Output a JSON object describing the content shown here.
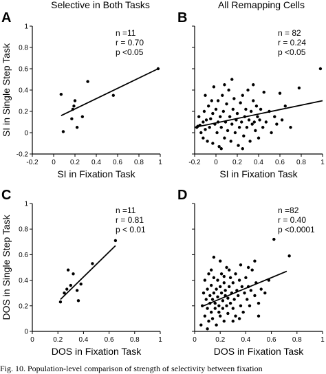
{
  "column_titles": [
    "Selective in Both Tasks",
    "All Remapping Cells"
  ],
  "caption": "Fig. 10. Population-level comparison of strength of selectivity between fixation",
  "colors": {
    "ink": "#000000",
    "background": "#ffffff"
  },
  "chart_data": [
    {
      "panel": "A",
      "type": "scatter",
      "xlabel": "SI in Fixation Task",
      "ylabel": "SI in Single Step Task",
      "xlim": [
        -0.2,
        1
      ],
      "ylim": [
        -0.2,
        1
      ],
      "xticks": [
        "-0.2",
        "0",
        "0.2",
        "0.4",
        "0.6",
        "0.8",
        "1"
      ],
      "yticks": [
        "-0.2",
        "0",
        "0.2",
        "0.4",
        "0.6",
        "0.8",
        "1"
      ],
      "stats": [
        "n =11",
        "r = 0.70",
        "p <0.05"
      ],
      "points": [
        [
          0.07,
          0.36
        ],
        [
          0.09,
          0.01
        ],
        [
          0.17,
          0.13
        ],
        [
          0.18,
          0.22
        ],
        [
          0.19,
          0.25
        ],
        [
          0.2,
          0.3
        ],
        [
          0.22,
          0.05
        ],
        [
          0.27,
          0.15
        ],
        [
          0.32,
          0.48
        ],
        [
          0.56,
          0.35
        ],
        [
          0.98,
          0.6
        ]
      ],
      "fit": [
        [
          0.07,
          0.16
        ],
        [
          0.98,
          0.6
        ]
      ]
    },
    {
      "panel": "B",
      "type": "scatter",
      "xlabel": "SI in Fixation Task",
      "ylabel": "",
      "xlim": [
        -0.2,
        1
      ],
      "ylim": [
        -0.2,
        1
      ],
      "xticks": [
        "-0.2",
        "0",
        "0.2",
        "0.4",
        "0.6",
        "0.8",
        "1"
      ],
      "yticks": [],
      "stats": [
        "n = 82",
        "r = 0.24",
        "p <0.05"
      ],
      "points": [
        [
          -0.18,
          0.05
        ],
        [
          -0.17,
          0.06
        ],
        [
          -0.16,
          0.15
        ],
        [
          -0.15,
          0.07
        ],
        [
          -0.14,
          0.0
        ],
        [
          -0.12,
          0.1
        ],
        [
          -0.12,
          -0.05
        ],
        [
          -0.11,
          0.2
        ],
        [
          -0.1,
          0.03
        ],
        [
          -0.09,
          0.12
        ],
        [
          -0.08,
          -0.08
        ],
        [
          -0.07,
          0.25
        ],
        [
          -0.06,
          0.05
        ],
        [
          -0.05,
          0.13
        ],
        [
          -0.04,
          0.3
        ],
        [
          -0.03,
          -0.1
        ],
        [
          -0.03,
          0.18
        ],
        [
          -0.02,
          0.43
        ],
        [
          -0.01,
          0.08
        ],
        [
          0.0,
          0.22
        ],
        [
          0.01,
          0.0
        ],
        [
          0.02,
          0.1
        ],
        [
          0.02,
          0.3
        ],
        [
          0.03,
          -0.13
        ],
        [
          0.04,
          0.15
        ],
        [
          0.05,
          0.05
        ],
        [
          0.06,
          0.35
        ],
        [
          0.07,
          0.2
        ],
        [
          0.08,
          -0.05
        ],
        [
          0.09,
          0.1
        ],
        [
          0.1,
          0.27
        ],
        [
          0.11,
          0.02
        ],
        [
          0.12,
          0.4
        ],
        [
          0.13,
          0.15
        ],
        [
          0.14,
          -0.08
        ],
        [
          0.15,
          0.08
        ],
        [
          0.16,
          0.22
        ],
        [
          0.17,
          0.32
        ],
        [
          0.18,
          0.0
        ],
        [
          0.19,
          0.12
        ],
        [
          0.2,
          0.18
        ],
        [
          0.21,
          -0.12
        ],
        [
          0.22,
          0.05
        ],
        [
          0.23,
          0.28
        ],
        [
          0.24,
          0.1
        ],
        [
          0.25,
          0.35
        ],
        [
          0.26,
          -0.03
        ],
        [
          0.27,
          0.15
        ],
        [
          0.28,
          0.22
        ],
        [
          0.29,
          0.05
        ],
        [
          0.3,
          0.4
        ],
        [
          0.31,
          0.12
        ],
        [
          0.32,
          -0.08
        ],
        [
          0.33,
          0.2
        ],
        [
          0.34,
          0.08
        ],
        [
          0.35,
          0.3
        ],
        [
          0.36,
          0.1
        ],
        [
          0.37,
          0.02
        ],
        [
          0.38,
          0.25
        ],
        [
          0.39,
          0.15
        ],
        [
          0.4,
          -0.05
        ],
        [
          0.41,
          0.12
        ],
        [
          0.42,
          0.22
        ],
        [
          0.44,
          0.05
        ],
        [
          0.45,
          0.38
        ],
        [
          0.47,
          0.1
        ],
        [
          0.5,
          0.2
        ],
        [
          0.52,
          0.0
        ],
        [
          0.55,
          0.15
        ],
        [
          0.57,
          0.08
        ],
        [
          0.6,
          0.37
        ],
        [
          0.62,
          0.12
        ],
        [
          0.65,
          0.25
        ],
        [
          0.7,
          0.05
        ],
        [
          0.78,
          0.42
        ],
        [
          0.98,
          0.6
        ],
        [
          0.08,
          0.45
        ],
        [
          0.15,
          0.5
        ],
        [
          -0.1,
          0.35
        ],
        [
          0.05,
          -0.15
        ],
        [
          0.25,
          -0.15
        ],
        [
          0.35,
          0.45
        ]
      ],
      "fit": [
        [
          -0.2,
          0.05
        ],
        [
          1.0,
          0.3
        ]
      ]
    },
    {
      "panel": "C",
      "type": "scatter",
      "xlabel": "DOS in Fixation Task",
      "ylabel": "DOS in Single Step Task",
      "xlim": [
        0,
        1
      ],
      "ylim": [
        0,
        1
      ],
      "xticks": [
        "0",
        "0.2",
        "0.4",
        "0.6",
        "0.8",
        "1"
      ],
      "yticks": [
        "0",
        "0.2",
        "0.4",
        "0.6",
        "0.8",
        "1"
      ],
      "stats": [
        "n =11",
        "r = 0.81",
        "p < 0.01"
      ],
      "points": [
        [
          0.22,
          0.23
        ],
        [
          0.25,
          0.3
        ],
        [
          0.27,
          0.33
        ],
        [
          0.28,
          0.48
        ],
        [
          0.3,
          0.36
        ],
        [
          0.32,
          0.45
        ],
        [
          0.35,
          0.32
        ],
        [
          0.36,
          0.24
        ],
        [
          0.38,
          0.37
        ],
        [
          0.47,
          0.53
        ],
        [
          0.65,
          0.71
        ]
      ],
      "fit": [
        [
          0.22,
          0.25
        ],
        [
          0.65,
          0.67
        ]
      ]
    },
    {
      "panel": "D",
      "type": "scatter",
      "xlabel": "DOS in Fixation Task",
      "ylabel": "",
      "xlim": [
        0,
        1
      ],
      "ylim": [
        0,
        1
      ],
      "xticks": [
        "0",
        "0.2",
        "0.4",
        "0.6",
        "0.8",
        "1"
      ],
      "yticks": [],
      "stats": [
        "n =82",
        "r = 0.40",
        "p <0.0001"
      ],
      "points": [
        [
          0.05,
          0.05
        ],
        [
          0.06,
          0.2
        ],
        [
          0.07,
          0.3
        ],
        [
          0.08,
          0.12
        ],
        [
          0.08,
          0.4
        ],
        [
          0.09,
          0.25
        ],
        [
          0.1,
          0.18
        ],
        [
          0.1,
          0.33
        ],
        [
          0.11,
          0.08
        ],
        [
          0.11,
          0.45
        ],
        [
          0.12,
          0.22
        ],
        [
          0.12,
          0.28
        ],
        [
          0.13,
          0.15
        ],
        [
          0.13,
          0.36
        ],
        [
          0.14,
          0.1
        ],
        [
          0.14,
          0.25
        ],
        [
          0.15,
          0.3
        ],
        [
          0.15,
          0.42
        ],
        [
          0.16,
          0.18
        ],
        [
          0.16,
          0.22
        ],
        [
          0.17,
          0.05
        ],
        [
          0.17,
          0.33
        ],
        [
          0.18,
          0.27
        ],
        [
          0.18,
          0.4
        ],
        [
          0.19,
          0.15
        ],
        [
          0.19,
          0.2
        ],
        [
          0.2,
          0.35
        ],
        [
          0.2,
          0.12
        ],
        [
          0.21,
          0.3
        ],
        [
          0.21,
          0.45
        ],
        [
          0.22,
          0.24
        ],
        [
          0.22,
          0.18
        ],
        [
          0.23,
          0.38
        ],
        [
          0.23,
          0.08
        ],
        [
          0.24,
          0.28
        ],
        [
          0.24,
          0.32
        ],
        [
          0.25,
          0.2
        ],
        [
          0.25,
          0.5
        ],
        [
          0.26,
          0.26
        ],
        [
          0.26,
          0.14
        ],
        [
          0.27,
          0.35
        ],
        [
          0.28,
          0.22
        ],
        [
          0.28,
          0.42
        ],
        [
          0.29,
          0.3
        ],
        [
          0.3,
          0.18
        ],
        [
          0.3,
          0.38
        ],
        [
          0.31,
          0.25
        ],
        [
          0.32,
          0.45
        ],
        [
          0.32,
          0.12
        ],
        [
          0.33,
          0.32
        ],
        [
          0.34,
          0.28
        ],
        [
          0.35,
          0.4
        ],
        [
          0.36,
          0.2
        ],
        [
          0.37,
          0.35
        ],
        [
          0.38,
          0.15
        ],
        [
          0.39,
          0.3
        ],
        [
          0.4,
          0.42
        ],
        [
          0.41,
          0.25
        ],
        [
          0.42,
          0.35
        ],
        [
          0.43,
          0.2
        ],
        [
          0.44,
          0.32
        ],
        [
          0.45,
          0.48
        ],
        [
          0.47,
          0.28
        ],
        [
          0.48,
          0.38
        ],
        [
          0.5,
          0.22
        ],
        [
          0.52,
          0.33
        ],
        [
          0.55,
          0.3
        ],
        [
          0.58,
          0.4
        ],
        [
          0.62,
          0.72
        ],
        [
          0.74,
          0.59
        ],
        [
          0.47,
          0.55
        ],
        [
          0.36,
          0.52
        ],
        [
          0.2,
          0.55
        ],
        [
          0.1,
          0.02
        ],
        [
          0.15,
          0.58
        ],
        [
          0.27,
          0.48
        ],
        [
          0.3,
          0.08
        ],
        [
          0.42,
          0.5
        ],
        [
          0.13,
          0.48
        ],
        [
          0.23,
          0.43
        ],
        [
          0.35,
          0.1
        ],
        [
          0.5,
          0.12
        ]
      ],
      "fit": [
        [
          0.07,
          0.2
        ],
        [
          0.72,
          0.47
        ]
      ]
    }
  ]
}
